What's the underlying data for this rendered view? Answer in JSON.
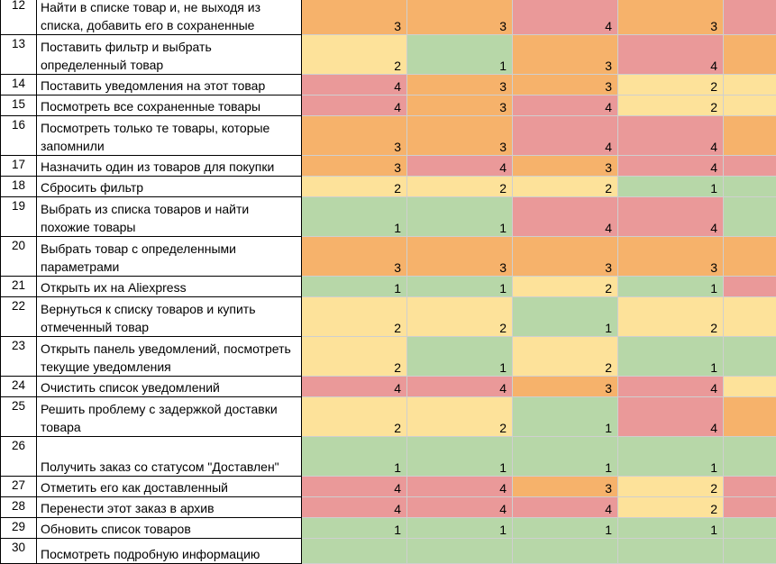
{
  "colors": {
    "1": "#b7d7a8",
    "2": "#fde29a",
    "3": "#f6b26b",
    "4": "#ea9999"
  },
  "rows": [
    {
      "n": "12",
      "task": "Найти в списке товар и, не выходя из списка, добавить его в сохраненные",
      "v": [
        "3",
        "3",
        "4",
        "3"
      ],
      "c": [
        3,
        3,
        4,
        3,
        4
      ],
      "h": 43
    },
    {
      "n": "13",
      "task": "Поставить фильтр и выбрать определенный товар",
      "v": [
        "2",
        "1",
        "3",
        "4"
      ],
      "c": [
        2,
        1,
        3,
        4,
        3
      ],
      "h": 44
    },
    {
      "n": "14",
      "task": "Поставить уведомления на этот товар",
      "v": [
        "4",
        "3",
        "3",
        "2"
      ],
      "c": [
        4,
        3,
        3,
        2,
        2
      ],
      "h": 23
    },
    {
      "n": "15",
      "task": "Посмотреть все сохраненные товары",
      "v": [
        "4",
        "3",
        "4",
        "2"
      ],
      "c": [
        4,
        3,
        4,
        2,
        2
      ],
      "h": 23
    },
    {
      "n": "16",
      "task": "Посмотреть только те товары, которые запомнили",
      "v": [
        "3",
        "3",
        "4",
        "4"
      ],
      "c": [
        3,
        3,
        4,
        4,
        3
      ],
      "h": 44
    },
    {
      "n": "17",
      "task": "Назначить один из товаров для покупки",
      "v": [
        "3",
        "4",
        "3",
        "4"
      ],
      "c": [
        3,
        4,
        3,
        4,
        4
      ],
      "h": 23
    },
    {
      "n": "18",
      "task": "Сбросить фильтр",
      "v": [
        "2",
        "2",
        "2",
        "1"
      ],
      "c": [
        2,
        2,
        2,
        1,
        1
      ],
      "h": 23
    },
    {
      "n": "19",
      "task": "Выбрать из списка товаров и найти похожие товары",
      "v": [
        "1",
        "1",
        "4",
        "4"
      ],
      "c": [
        1,
        1,
        4,
        4,
        1
      ],
      "h": 44
    },
    {
      "n": "20",
      "task": "Выбрать товар с определенными параметрами",
      "v": [
        "3",
        "3",
        "3",
        "3"
      ],
      "c": [
        3,
        3,
        3,
        3,
        3
      ],
      "h": 44
    },
    {
      "n": "21",
      "task": "Открыть их на Aliexpress",
      "v": [
        "1",
        "1",
        "2",
        "1"
      ],
      "c": [
        1,
        1,
        2,
        1,
        4
      ],
      "h": 23
    },
    {
      "n": "22",
      "task": "Вернуться к списку товаров и купить отмеченный товар",
      "v": [
        "2",
        "2",
        "1",
        "2"
      ],
      "c": [
        2,
        2,
        1,
        2,
        2
      ],
      "h": 44
    },
    {
      "n": "23",
      "task": "Открыть панель уведомлений, посмотреть текущие уведомления",
      "v": [
        "2",
        "1",
        "2",
        "1"
      ],
      "c": [
        2,
        1,
        2,
        1,
        1
      ],
      "h": 44
    },
    {
      "n": "24",
      "task": "Очистить список уведомлений",
      "v": [
        "4",
        "4",
        "3",
        "4"
      ],
      "c": [
        4,
        4,
        3,
        4,
        2
      ],
      "h": 23
    },
    {
      "n": "25",
      "task": "Решить проблему с задержкой доставки товара",
      "v": [
        "2",
        "2",
        "1",
        "4"
      ],
      "c": [
        2,
        2,
        1,
        4,
        3
      ],
      "h": 44
    },
    {
      "n": "26",
      "task": "Получить заказ со статусом \"Доставлен\"",
      "v": [
        "1",
        "1",
        "1",
        "1"
      ],
      "c": [
        1,
        1,
        1,
        1,
        1
      ],
      "h": 44
    },
    {
      "n": "27",
      "task": "Отметить его как доставленный",
      "v": [
        "4",
        "4",
        "3",
        "2"
      ],
      "c": [
        4,
        4,
        3,
        2,
        4
      ],
      "h": 23
    },
    {
      "n": "28",
      "task": "Перенести этот заказ в архив",
      "v": [
        "4",
        "4",
        "4",
        "2"
      ],
      "c": [
        4,
        4,
        4,
        2,
        4
      ],
      "h": 23
    },
    {
      "n": "29",
      "task": "Обновить список товаров",
      "v": [
        "1",
        "1",
        "1",
        "1"
      ],
      "c": [
        1,
        1,
        1,
        1,
        1
      ],
      "h": 23
    },
    {
      "n": "30",
      "task": "Посмотреть подробную информацию",
      "v": [
        "",
        "",
        "",
        ""
      ],
      "c": [
        1,
        1,
        1,
        1,
        1
      ],
      "h": 28
    }
  ]
}
